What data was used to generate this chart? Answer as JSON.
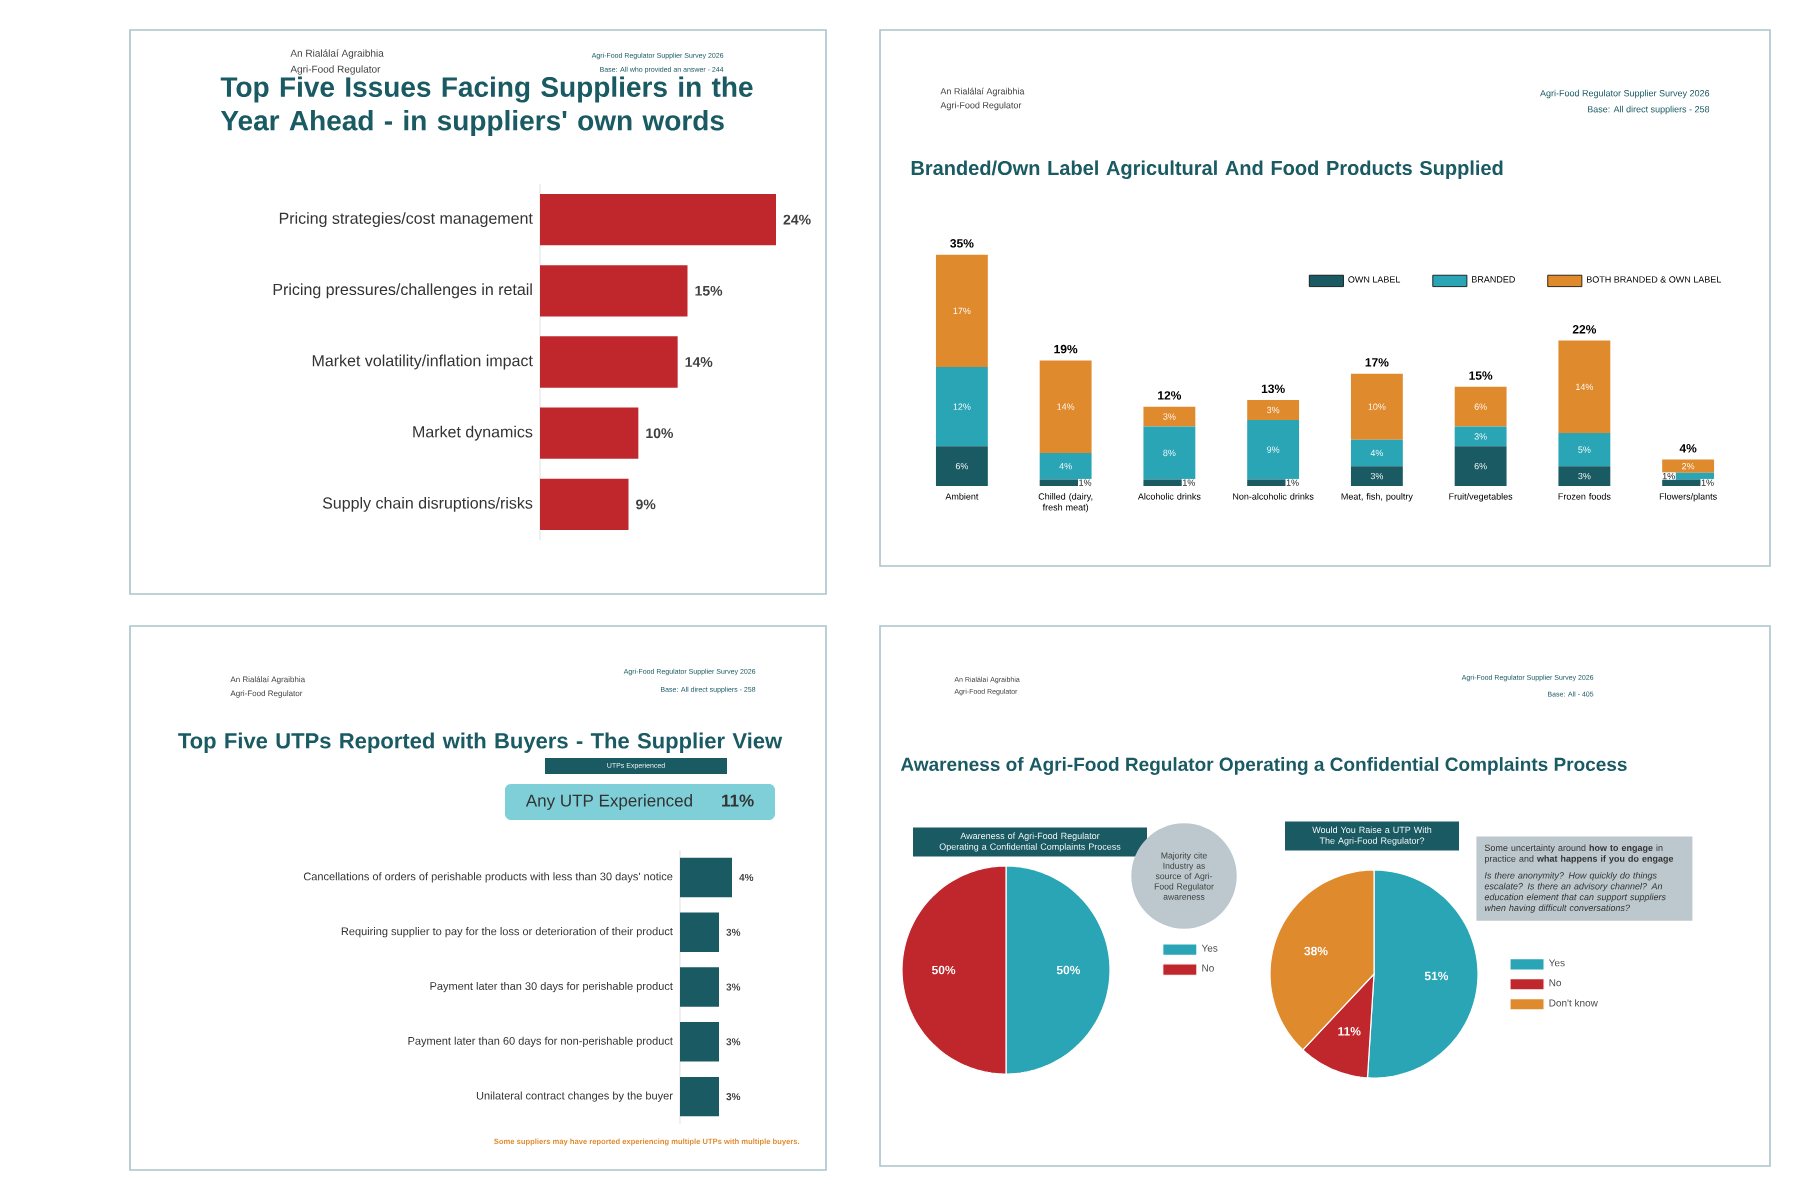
{
  "chart_data": [
    {
      "type": "bar",
      "orientation": "horizontal",
      "title": "Top Five Issues Facing Suppliers in the Year Ahead - in suppliers' own words",
      "categories": [
        "Pricing strategies/cost management",
        "Pricing pressures/challenges in retail",
        "Market volatility/inflation impact",
        "Market dynamics",
        "Supply chain disruptions/risks"
      ],
      "values": [
        24,
        15,
        14,
        10,
        9
      ],
      "value_labels": [
        "24%",
        "15%",
        "14%",
        "10%",
        "9%"
      ],
      "color": "#c0272d",
      "annotations": [
        "An Rialálaí Agraibhia",
        "Agri-Food Regulator",
        "Agri-Food Regulator Supplier Survey 2026",
        "Base: All who provided an answer - 244"
      ]
    },
    {
      "type": "bar",
      "stacked": true,
      "title": "Branded/Own Label Agricultural And Food Products Supplied",
      "categories": [
        "Ambient",
        "Chilled (dairy, fresh meat)",
        "Alcoholic drinks",
        "Non-alcoholic drinks",
        "Meat, fish, poultry",
        "Fruit/vegetables",
        "Frozen foods",
        "Flowers/plants"
      ],
      "series": [
        {
          "name": "OWN LABEL",
          "color": "#1a5a63",
          "values": [
            6,
            1,
            1,
            1,
            3,
            6,
            3,
            1
          ],
          "value_labels": [
            "6%",
            "1%",
            "1%",
            "1%",
            "3%",
            "6%",
            "3%",
            "1%"
          ]
        },
        {
          "name": "BRANDED",
          "color": "#2aa5b5",
          "values": [
            12,
            4,
            8,
            9,
            4,
            3,
            5,
            1
          ],
          "value_labels": [
            "12%",
            "4%",
            "8%",
            "9%",
            "4%",
            "3%",
            "5%",
            "1%"
          ]
        },
        {
          "name": "BOTH BRANDED & OWN LABEL",
          "color": "#e08a2e",
          "values": [
            17,
            14,
            3,
            3,
            10,
            6,
            14,
            2
          ],
          "value_labels": [
            "17%",
            "14%",
            "3%",
            "3%",
            "10%",
            "6%",
            "14%",
            "2%"
          ]
        }
      ],
      "totals": [
        "35%",
        "19%",
        "12%",
        "13%",
        "17%",
        "15%",
        "22%",
        "4%"
      ],
      "legend": "top right",
      "annotations": [
        "An Rialálaí Agraibhia",
        "Agri-Food Regulator",
        "Agri-Food Regulator Supplier Survey 2026",
        "Base: All direct suppliers - 258"
      ]
    },
    {
      "type": "bar",
      "orientation": "horizontal",
      "title": "Top Five UTPs Reported with Buyers - The Supplier View",
      "categories": [
        "Cancellations of orders of perishable products with less than 30 days' notice",
        "Requiring supplier to pay for the loss or deterioration of their product",
        "Payment later than 30 days for perishable product",
        "Payment later than 60 days for non-perishable product",
        "Unilateral contract changes by the buyer"
      ],
      "values": [
        4,
        3,
        3,
        3,
        3
      ],
      "value_labels": [
        "4%",
        "3%",
        "3%",
        "3%",
        "3%"
      ],
      "color": "#1a5a63",
      "annotations": [
        "An Rialálaí Agraibhia",
        "Agri-Food Regulator",
        "Agri-Food Regulator Supplier Survey 2026",
        "Base: All direct suppliers - 258",
        "UTPs Experienced",
        "Any UTP Experienced",
        "11%",
        "Some suppliers may have reported experiencing multiple UTPs with multiple buyers."
      ]
    },
    {
      "type": "pie",
      "title": "Awareness of Agri-Food Regulator Operating a Confidential Complaints Process",
      "categories": [
        "Yes",
        "No"
      ],
      "values": [
        50,
        50
      ],
      "value_labels": [
        "50%",
        "50%"
      ],
      "colors": [
        "#2aa5b5",
        "#c0272d"
      ],
      "legend": "right",
      "annotations": [
        "Awareness of Agri-Food Regulator Operating a Confidential Complaints Process",
        "An Rialálaí Agraibhia",
        "Agri-Food Regulator",
        "Agri-Food Regulator Supplier Survey 2026",
        "Base: All - 405",
        "Majority cite Industry as source of Agri-Food Regulator awareness"
      ]
    },
    {
      "type": "pie",
      "title": "Would You Raise a UTP With The Agri-Food Regulator?",
      "categories": [
        "Yes",
        "No",
        "Don't know"
      ],
      "values": [
        51,
        11,
        38
      ],
      "value_labels": [
        "51%",
        "11%",
        "38%"
      ],
      "colors": [
        "#2aa5b5",
        "#c0272d",
        "#e08a2e"
      ],
      "legend": "right",
      "annotations": [
        "Some uncertainty around **how to engage** in practice and **what happens if you do engage**",
        "Is there anonymity? How quickly do things escalate? Is there an advisory channel? An education element that can support suppliers when having difficult conversations?"
      ]
    }
  ]
}
